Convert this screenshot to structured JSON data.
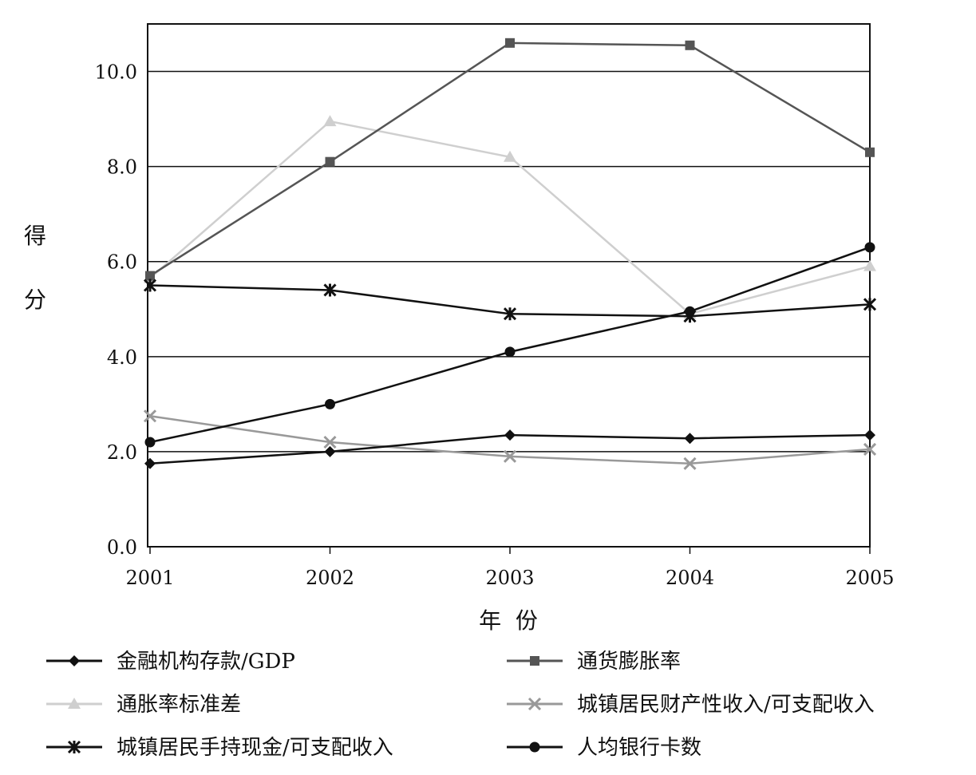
{
  "chart_data": {
    "type": "line",
    "title": "",
    "xlabel": "年  份",
    "ylabel": "得分",
    "x": [
      "2001",
      "2002",
      "2003",
      "2004",
      "2005"
    ],
    "yticks": [
      "0.0",
      "2.0",
      "4.0",
      "6.0",
      "8.0",
      "10.0"
    ],
    "ylim": [
      0,
      11
    ],
    "grid": "horizontal",
    "legend_position": "bottom",
    "series": [
      {
        "name": "金融机构存款/GDP",
        "marker": "diamond",
        "color": "#111111",
        "values": [
          1.75,
          2.0,
          2.35,
          2.28,
          2.35
        ]
      },
      {
        "name": "通货膨胀率",
        "marker": "square",
        "color": "#555555",
        "values": [
          5.7,
          8.1,
          10.6,
          10.55,
          8.3
        ]
      },
      {
        "name": "通胀率标准差",
        "marker": "triangle",
        "color": "#cfcfcf",
        "values": [
          5.65,
          8.95,
          8.2,
          4.9,
          5.9
        ]
      },
      {
        "name": "城镇居民财产性收入/可支配收入",
        "marker": "x",
        "color": "#999999",
        "values": [
          2.75,
          2.2,
          1.9,
          1.75,
          2.05
        ]
      },
      {
        "name": "城镇居民手持现金/可支配收入",
        "marker": "asterisk",
        "color": "#111111",
        "values": [
          5.5,
          5.4,
          4.9,
          4.85,
          5.1
        ]
      },
      {
        "name": "人均银行卡数",
        "marker": "circle",
        "color": "#111111",
        "values": [
          2.2,
          3.0,
          4.1,
          4.95,
          6.3
        ]
      }
    ]
  }
}
